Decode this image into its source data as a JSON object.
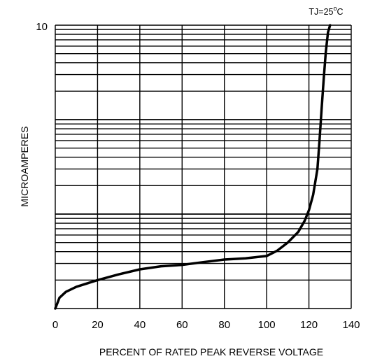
{
  "chart_data": {
    "type": "line",
    "title": "",
    "annotation": {
      "prefix": "TJ=25",
      "superscript": "o",
      "suffix": "C"
    },
    "xlabel": "PERCENT OF RATED PEAK REVERSE VOLTAGE",
    "ylabel": "MICROAMPERES",
    "xlim": [
      0,
      140
    ],
    "x_ticks": [
      0,
      20,
      40,
      60,
      80,
      100,
      120,
      140
    ],
    "y_scale": "log",
    "ylim": [
      0.01,
      10
    ],
    "y_tick_labels": [
      {
        "value": 10,
        "label": "10"
      }
    ],
    "grid": true,
    "series": [
      {
        "x": [
          0,
          2,
          5,
          10,
          20,
          30,
          40,
          50,
          60,
          70,
          80,
          90,
          100,
          105,
          110,
          115,
          118,
          120,
          122,
          124,
          125,
          126,
          127,
          128,
          129,
          130
        ],
        "y": [
          0.01,
          0.013,
          0.015,
          0.017,
          0.02,
          0.023,
          0.026,
          0.028,
          0.029,
          0.031,
          0.033,
          0.034,
          0.036,
          0.041,
          0.05,
          0.065,
          0.085,
          0.11,
          0.16,
          0.3,
          0.6,
          1.3,
          2.7,
          5.2,
          8.4,
          10
        ]
      }
    ]
  }
}
